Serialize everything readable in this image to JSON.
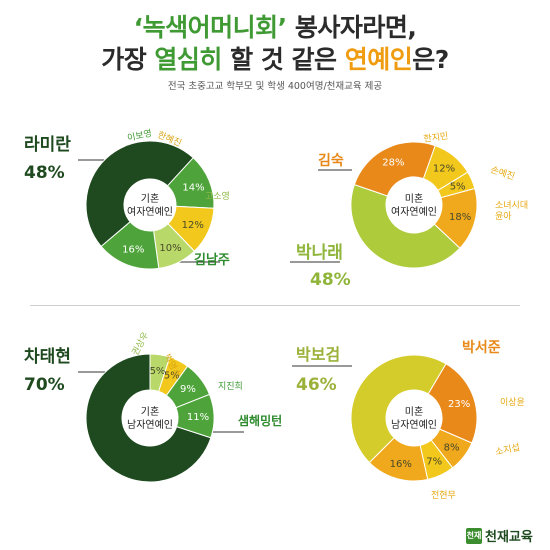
{
  "title": {
    "line1_quote": "‘녹색어머니회’",
    "line1_rest": " 봉사자라면,",
    "line2_a": "가장 ",
    "line2_green": "열심히",
    "line2_b": " 할 것 같은 ",
    "line2_orange": "연예인",
    "line2_c": "은?"
  },
  "subtitle": "전국 초중고교 학부모 및 학생 400여명/천재교육 제공",
  "logo": {
    "mark": "천재",
    "text": "천재교육"
  },
  "colors": {
    "dark_green": "#1f4a1f",
    "green": "#4ea43a",
    "light_green": "#b8d86a",
    "yellow": "#f2c81c",
    "orange": "#e8891a",
    "lime": "#aecb3c",
    "olive_yellow": "#d4cc2a"
  },
  "chart_data": [
    {
      "type": "pie",
      "title": "기혼\n여자연예인",
      "slices": [
        {
          "name": "라미란",
          "value": 48,
          "label": "48%",
          "color": "#1f4a1f"
        },
        {
          "name": "이보영",
          "value": 14,
          "label": "14%",
          "color": "#4ea43a"
        },
        {
          "name": "한혜진",
          "value": 12,
          "label": "12%",
          "color": "#f2c81c"
        },
        {
          "name": "고소영",
          "value": 10,
          "label": "10%",
          "color": "#b8d86a"
        },
        {
          "name": "김남주",
          "value": 16,
          "label": "16%",
          "color": "#4ea43a"
        }
      ]
    },
    {
      "type": "pie",
      "title": "미혼\n여자연예인",
      "slices": [
        {
          "name": "박나래",
          "value": 48,
          "label": "48%",
          "color": "#aecb3c"
        },
        {
          "name": "김숙",
          "value": 28,
          "label": "28%",
          "color": "#e8891a"
        },
        {
          "name": "한지민",
          "value": 12,
          "label": "12%",
          "color": "#f2c81c"
        },
        {
          "name": "손예진",
          "value": 5,
          "label": "5%",
          "color": "#f2c81c"
        },
        {
          "name": "소녀시대 윤아",
          "value": 18,
          "label": "18%",
          "color": "#f0a81c"
        }
      ]
    },
    {
      "type": "pie",
      "title": "기혼\n남자연예인",
      "slices": [
        {
          "name": "차태현",
          "value": 70,
          "label": "70%",
          "color": "#1f4a1f"
        },
        {
          "name": "권상우",
          "value": 5,
          "label": "5%",
          "color": "#b8d86a"
        },
        {
          "name": "박명수",
          "value": 5,
          "label": "5%",
          "color": "#f2c81c"
        },
        {
          "name": "지진희",
          "value": 9,
          "label": "9%",
          "color": "#4ea43a"
        },
        {
          "name": "샘해밍턴",
          "value": 11,
          "label": "11%",
          "color": "#4ea43a"
        }
      ]
    },
    {
      "type": "pie",
      "title": "미혼\n남자연예인",
      "slices": [
        {
          "name": "박보검",
          "value": 46,
          "label": "46%",
          "color": "#d4cc2a"
        },
        {
          "name": "박서준",
          "value": 23,
          "label": "23%",
          "color": "#e8891a"
        },
        {
          "name": "이상윤",
          "value": 8,
          "label": "8%",
          "color": "#f0a81c"
        },
        {
          "name": "소지섭",
          "value": 7,
          "label": "7%",
          "color": "#f2c81c"
        },
        {
          "name": "전현무",
          "value": 16,
          "label": "16%",
          "color": "#f0a81c"
        }
      ]
    }
  ]
}
